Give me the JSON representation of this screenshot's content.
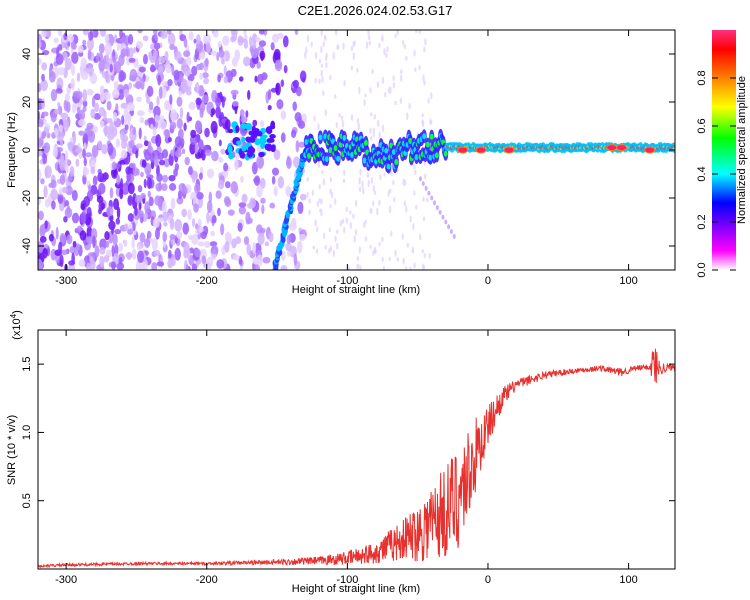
{
  "title": "C2E1.2026.024.02.53.G17",
  "chart_data": [
    {
      "type": "heatmap",
      "xlabel": "Height of straight line (km)",
      "ylabel": "Frequency (Hz)",
      "xlim": [
        -320,
        133
      ],
      "ylim": [
        -50,
        50
      ],
      "xticks": [
        -300,
        -200,
        -100,
        0,
        100
      ],
      "yticks": [
        -40,
        -20,
        0,
        20,
        40
      ],
      "colorbar": {
        "label": "Normalized spectral amplitude",
        "range": [
          0.0,
          1.0
        ],
        "ticks": [
          "0.0",
          "0.2",
          "0.4",
          "0.6",
          "0.8"
        ],
        "colors": [
          "#ffffff",
          "#ff00ff",
          "#7f00ff",
          "#0000ff",
          "#00ffff",
          "#00ff00",
          "#ffff00",
          "#ff8000",
          "#ff0000",
          "#ff3080"
        ]
      },
      "features": [
        {
          "name": "central tone",
          "x_range": [
            -130,
            133
          ],
          "freq_hz": 0,
          "amplitude": 0.9
        },
        {
          "name": "diagonal tone",
          "x_start": -152,
          "freq_start": -50,
          "x_end": -130,
          "freq_end": 0,
          "amplitude": 0.3
        },
        {
          "name": "noise cluster",
          "x_range": [
            -185,
            -150
          ],
          "freq_hz": 3,
          "amplitude": 0.35
        }
      ]
    },
    {
      "type": "line",
      "xlabel": "Height of straight line (km)",
      "ylabel": "SNR (10 * v/v)",
      "scale_note": "(x10",
      "scale_exp": "4",
      "xlim": [
        -320,
        133
      ],
      "ylim": [
        0,
        1.75
      ],
      "xticks": [
        -300,
        -200,
        -100,
        0,
        100
      ],
      "yticks": [
        0.5,
        1.0,
        1.5
      ],
      "ytick_labels": [
        "0.5",
        "1.0",
        "1.5"
      ],
      "color": "#e8302d",
      "x": [
        -320,
        -300,
        -250,
        -200,
        -150,
        -120,
        -100,
        -80,
        -70,
        -60,
        -50,
        -40,
        -30,
        -20,
        -10,
        0,
        10,
        20,
        40,
        60,
        80,
        95,
        105,
        115,
        118,
        122,
        133
      ],
      "y": [
        0.02,
        0.03,
        0.04,
        0.04,
        0.05,
        0.06,
        0.08,
        0.12,
        0.17,
        0.22,
        0.27,
        0.35,
        0.42,
        0.55,
        0.8,
        1.05,
        1.25,
        1.35,
        1.42,
        1.45,
        1.47,
        1.44,
        1.47,
        1.48,
        1.5,
        1.47,
        1.48
      ],
      "spread": [
        0.01,
        0.01,
        0.01,
        0.01,
        0.02,
        0.03,
        0.05,
        0.08,
        0.12,
        0.15,
        0.22,
        0.3,
        0.35,
        0.4,
        0.3,
        0.15,
        0.08,
        0.04,
        0.03,
        0.02,
        0.02,
        0.03,
        0.02,
        0.02,
        0.2,
        0.05,
        0.02
      ]
    }
  ]
}
